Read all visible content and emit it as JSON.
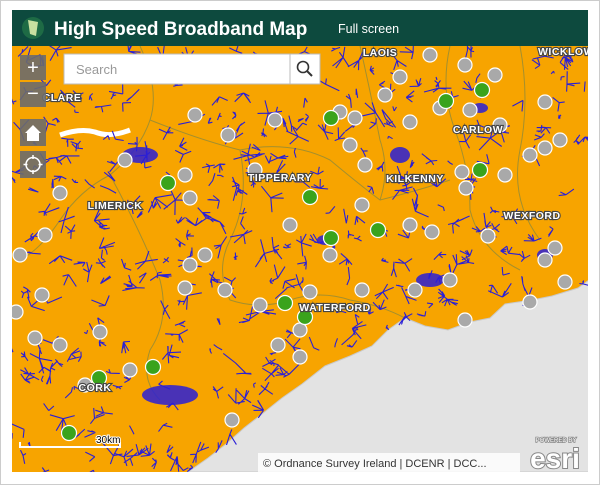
{
  "header": {
    "title": "High Speed Broadband Map",
    "link": "Full screen"
  },
  "search": {
    "placeholder": "Search"
  },
  "zoom": {
    "in": "+",
    "out": "−"
  },
  "map": {
    "labels": [
      "LAOIS",
      "WICKLOW",
      "CLARE",
      "CARLOW",
      "TIPPERARY",
      "KILKENNY",
      "LIMERICK",
      "WEXFORD",
      "WATERFORD",
      "CORK"
    ]
  },
  "scale": "30km",
  "attribution": "© Ordnance Survey Ireland | DCENR | DCC...",
  "logo": {
    "caption": "POWERED BY",
    "name": "esri"
  }
}
